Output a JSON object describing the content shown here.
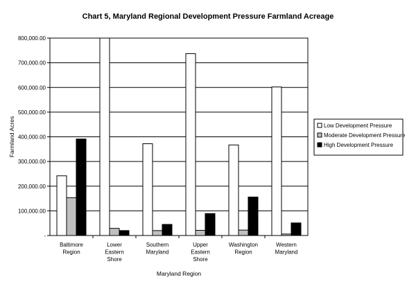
{
  "chart_data": {
    "type": "bar",
    "title": "Chart 5, Maryland Regional Development Pressure Farmland Acreage",
    "xlabel": "Maryland Region",
    "ylabel": "Farmland Acres",
    "ylim": [
      0,
      800000
    ],
    "yticks": [
      "-",
      "100,000.00",
      "200,000.00",
      "300,000.00",
      "400,000.00",
      "500,000.00",
      "600,000.00",
      "700,000.00",
      "800,000.00"
    ],
    "categories": [
      [
        "Baltimore",
        "Region"
      ],
      [
        "Lower",
        "Eastern",
        "Shore"
      ],
      [
        "Southern",
        "Maryland"
      ],
      [
        "Upper",
        "Eastern",
        "Shore"
      ],
      [
        "Washington",
        "Region"
      ],
      [
        "Western",
        "Maryland"
      ]
    ],
    "series": [
      {
        "name": "Low Development Pressure",
        "color": "#ffffff",
        "values": [
          242000,
          800000,
          372000,
          737000,
          367000,
          602000
        ]
      },
      {
        "name": "Moderate Development Pressure",
        "color": "#c0c0c0",
        "values": [
          153000,
          29000,
          20000,
          21000,
          22000,
          6000
        ]
      },
      {
        "name": "High Development Pressure",
        "color": "#000000",
        "values": [
          391000,
          20000,
          45000,
          89000,
          156000,
          51000
        ]
      }
    ],
    "grid": true,
    "legend_position": "right"
  }
}
